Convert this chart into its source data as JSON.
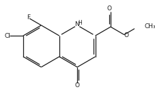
{
  "bg_color": "#ffffff",
  "line_color": "#1a1a1a",
  "line_width": 0.9,
  "font_size": 6.5,
  "figsize": [
    2.28,
    1.37
  ],
  "dpi": 100,
  "xlim": [
    -2.8,
    3.6
  ],
  "ylim": [
    -2.4,
    1.4
  ]
}
